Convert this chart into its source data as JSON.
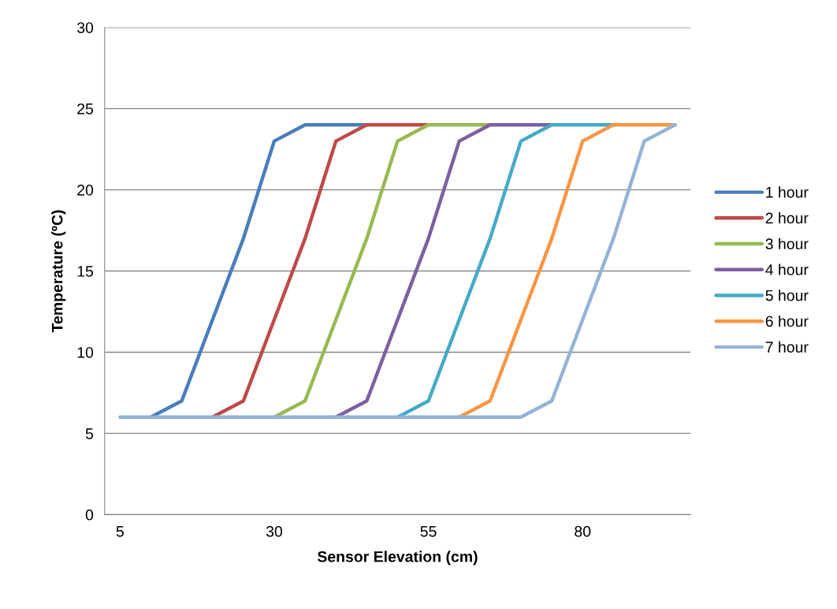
{
  "chart_data": {
    "type": "line",
    "xlabel": "Sensor Elevation (cm)",
    "ylabel": "Temperature (ºC)",
    "x": [
      5,
      10,
      15,
      20,
      25,
      30,
      35,
      40,
      45,
      50,
      55,
      60,
      65,
      70,
      75,
      80,
      85,
      90,
      95
    ],
    "xlim": [
      2.5,
      97.5
    ],
    "xticks": [
      5,
      30,
      55,
      80
    ],
    "ylim": [
      0,
      30
    ],
    "yticks": [
      0,
      5,
      10,
      15,
      20,
      25,
      30
    ],
    "grid": "y",
    "legend": "right",
    "marker": "none",
    "line_style": "solid",
    "series": [
      {
        "name": "1 hour",
        "color": "#4a7ebb",
        "values": [
          null,
          6,
          7,
          12,
          17,
          23,
          24,
          24,
          24,
          null,
          null,
          null,
          null,
          null,
          null,
          null,
          null,
          null,
          null
        ]
      },
      {
        "name": "2 hour",
        "color": "#be4b48",
        "values": [
          null,
          null,
          null,
          6,
          7,
          12,
          17,
          23,
          24,
          24,
          24,
          null,
          null,
          null,
          null,
          null,
          null,
          null,
          null
        ]
      },
      {
        "name": "3 hour",
        "color": "#98b954",
        "values": [
          null,
          null,
          null,
          null,
          null,
          6,
          7,
          12,
          17,
          23,
          24,
          24,
          24,
          null,
          null,
          null,
          null,
          null,
          null
        ]
      },
      {
        "name": "4 hour",
        "color": "#7d60a0",
        "values": [
          null,
          null,
          null,
          null,
          null,
          null,
          null,
          6,
          7,
          12,
          17,
          23,
          24,
          24,
          24,
          null,
          null,
          null,
          null
        ]
      },
      {
        "name": "5 hour",
        "color": "#46aac5",
        "values": [
          null,
          null,
          null,
          null,
          null,
          null,
          null,
          null,
          null,
          6,
          7,
          12,
          17,
          23,
          24,
          24,
          24,
          null,
          null
        ]
      },
      {
        "name": "6 hour",
        "color": "#f79646",
        "values": [
          null,
          null,
          null,
          null,
          null,
          null,
          null,
          null,
          null,
          null,
          null,
          6,
          7,
          12,
          17,
          23,
          24,
          24,
          24
        ]
      },
      {
        "name": "7 hour",
        "color": "#95b3d7",
        "values": [
          6,
          6,
          6,
          6,
          6,
          6,
          6,
          6,
          6,
          6,
          6,
          6,
          6,
          6,
          7,
          12,
          17,
          23,
          24
        ]
      }
    ]
  }
}
